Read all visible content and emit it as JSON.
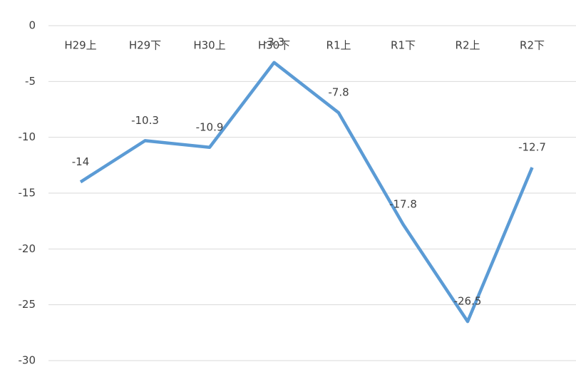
{
  "chart_data": {
    "type": "line",
    "categories": [
      "H29上",
      "H29下",
      "H30上",
      "H30下",
      "R1上",
      "R1下",
      "R2上",
      "R2下"
    ],
    "series": [
      {
        "name": "",
        "color": "#5b9bd5",
        "values": [
          -14,
          -10.3,
          -10.9,
          -3.3,
          -7.8,
          -17.8,
          -26.5,
          -12.7
        ]
      }
    ],
    "ylim": [
      -30,
      0
    ],
    "yticks": [
      0,
      -5,
      -10,
      -15,
      -20,
      -25,
      -30
    ],
    "grid": true
  }
}
